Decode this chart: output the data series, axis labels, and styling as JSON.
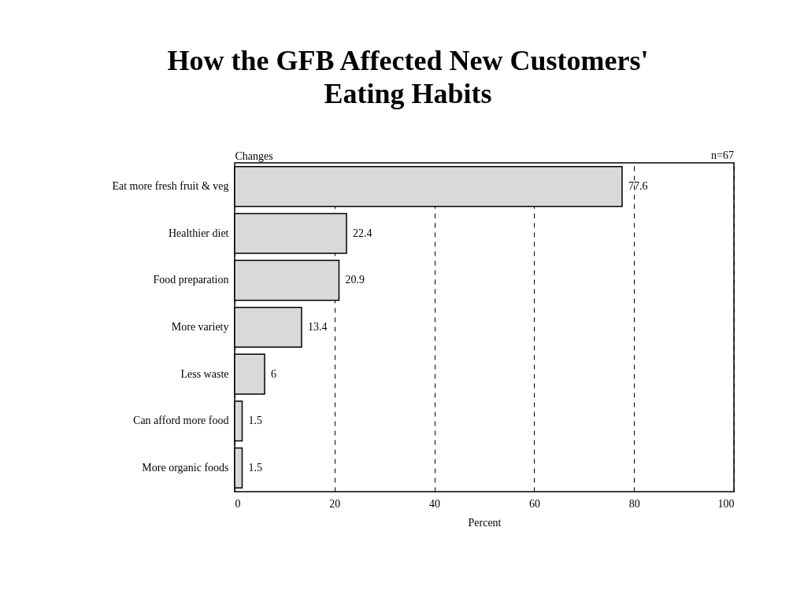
{
  "chart_data": {
    "type": "bar",
    "orientation": "horizontal",
    "title": "How the GFB Affected New Customers' Eating Habits",
    "categories": [
      "Eat more fresh fruit & veg",
      "Healthier diet",
      "Food preparation",
      "More variety",
      "Less waste",
      "Can afford more food",
      "More organic foods"
    ],
    "values": [
      77.6,
      22.4,
      20.9,
      13.4,
      6,
      1.5,
      1.5
    ],
    "color": "#d9d9d9",
    "xlim": [
      0,
      100
    ],
    "xticks": [
      0,
      20,
      40,
      60,
      80,
      100
    ],
    "xlabel": "Percent",
    "ylabel": "Changes",
    "annotations": [
      "n=67"
    ],
    "data_labels": true,
    "grid": "x"
  }
}
